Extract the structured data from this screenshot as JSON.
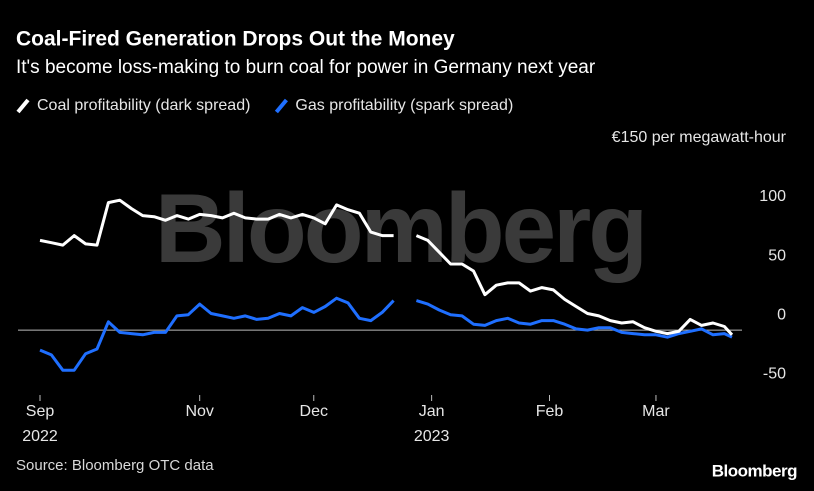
{
  "chart_data": {
    "type": "line",
    "title": "Coal-Fired Generation Drops Out the Money",
    "subtitle": "It's become loss-making to burn coal for power in Germany next year",
    "watermark": "Bloomberg",
    "source": "Source: Bloomberg OTC data",
    "logo": "Bloomberg",
    "x": [
      "2022-09-20",
      "2022-09-23",
      "2022-09-26",
      "2022-09-29",
      "2022-10-02",
      "2022-10-05",
      "2022-10-08",
      "2022-10-11",
      "2022-10-14",
      "2022-10-17",
      "2022-10-20",
      "2022-10-23",
      "2022-10-26",
      "2022-10-29",
      "2022-11-01",
      "2022-11-04",
      "2022-11-07",
      "2022-11-10",
      "2022-11-13",
      "2022-11-16",
      "2022-11-19",
      "2022-11-22",
      "2022-11-25",
      "2022-11-28",
      "2022-12-01",
      "2022-12-04",
      "2022-12-07",
      "2022-12-10",
      "2022-12-13",
      "2022-12-16",
      "2022-12-19",
      "2022-12-22",
      "2022-12-25",
      "2022-12-28",
      "2022-12-31",
      "2023-01-03",
      "2023-01-06",
      "2023-01-09",
      "2023-01-12",
      "2023-01-15",
      "2023-01-18",
      "2023-01-21",
      "2023-01-24",
      "2023-01-27",
      "2023-01-30",
      "2023-02-02",
      "2023-02-05",
      "2023-02-08",
      "2023-02-11",
      "2023-02-14",
      "2023-02-17",
      "2023-02-20",
      "2023-02-23",
      "2023-02-26",
      "2023-03-01",
      "2023-03-04",
      "2023-03-07",
      "2023-03-10",
      "2023-03-13",
      "2023-03-16",
      "2023-03-19",
      "2023-03-21"
    ],
    "series": [
      {
        "name": "Coal profitability (dark spread)",
        "color": "#ffffff",
        "values": [
          76,
          74,
          72,
          80,
          73,
          72,
          108,
          110,
          103,
          97,
          96,
          93,
          97,
          94,
          98,
          97,
          95,
          99,
          95,
          94,
          94,
          98,
          95,
          98,
          95,
          90,
          106,
          102,
          99,
          83,
          80,
          80,
          null,
          80,
          76,
          66,
          56,
          56,
          50,
          30,
          38,
          40,
          40,
          33,
          36,
          34,
          26,
          20,
          14,
          12,
          8,
          6,
          7,
          2,
          -1,
          -3,
          -1,
          9,
          4,
          6,
          3,
          -4
        ]
      },
      {
        "name": "Gas profitability (spark spread)",
        "color": "#1f6fff",
        "values": [
          -17,
          -21,
          -34,
          -34,
          -20,
          -16,
          7,
          -2,
          -3,
          -4,
          -2,
          -2,
          12,
          13,
          22,
          14,
          12,
          10,
          12,
          9,
          10,
          14,
          12,
          19,
          15,
          20,
          27,
          23,
          10,
          8,
          15,
          25,
          null,
          25,
          22,
          17,
          13,
          12,
          5,
          4,
          8,
          10,
          6,
          5,
          8,
          8,
          5,
          1,
          0,
          2,
          2,
          -2,
          -3,
          -4,
          -4,
          -6,
          -3,
          -1,
          1,
          -4,
          -3,
          -6
        ]
      }
    ],
    "xlim": [
      "2022-09-20",
      "2023-03-21"
    ],
    "xticks": [
      {
        "value": "2022-09-20",
        "label": "Sep"
      },
      {
        "value": "2022-11-01",
        "label": "Nov"
      },
      {
        "value": "2022-12-01",
        "label": "Dec"
      },
      {
        "value": "2023-01-01",
        "label": "Jan"
      },
      {
        "value": "2023-02-01",
        "label": "Feb"
      },
      {
        "value": "2023-03-01",
        "label": "Mar"
      }
    ],
    "xtick_years": [
      {
        "value": "2022-09-20",
        "label": "2022"
      },
      {
        "value": "2023-01-01",
        "label": "2023"
      }
    ],
    "ylim": [
      -55,
      150
    ],
    "yticks": [
      -50,
      0,
      50,
      100,
      {
        "value": 150,
        "label": "€150 per megawatt-hour"
      }
    ],
    "zero_line": true
  }
}
